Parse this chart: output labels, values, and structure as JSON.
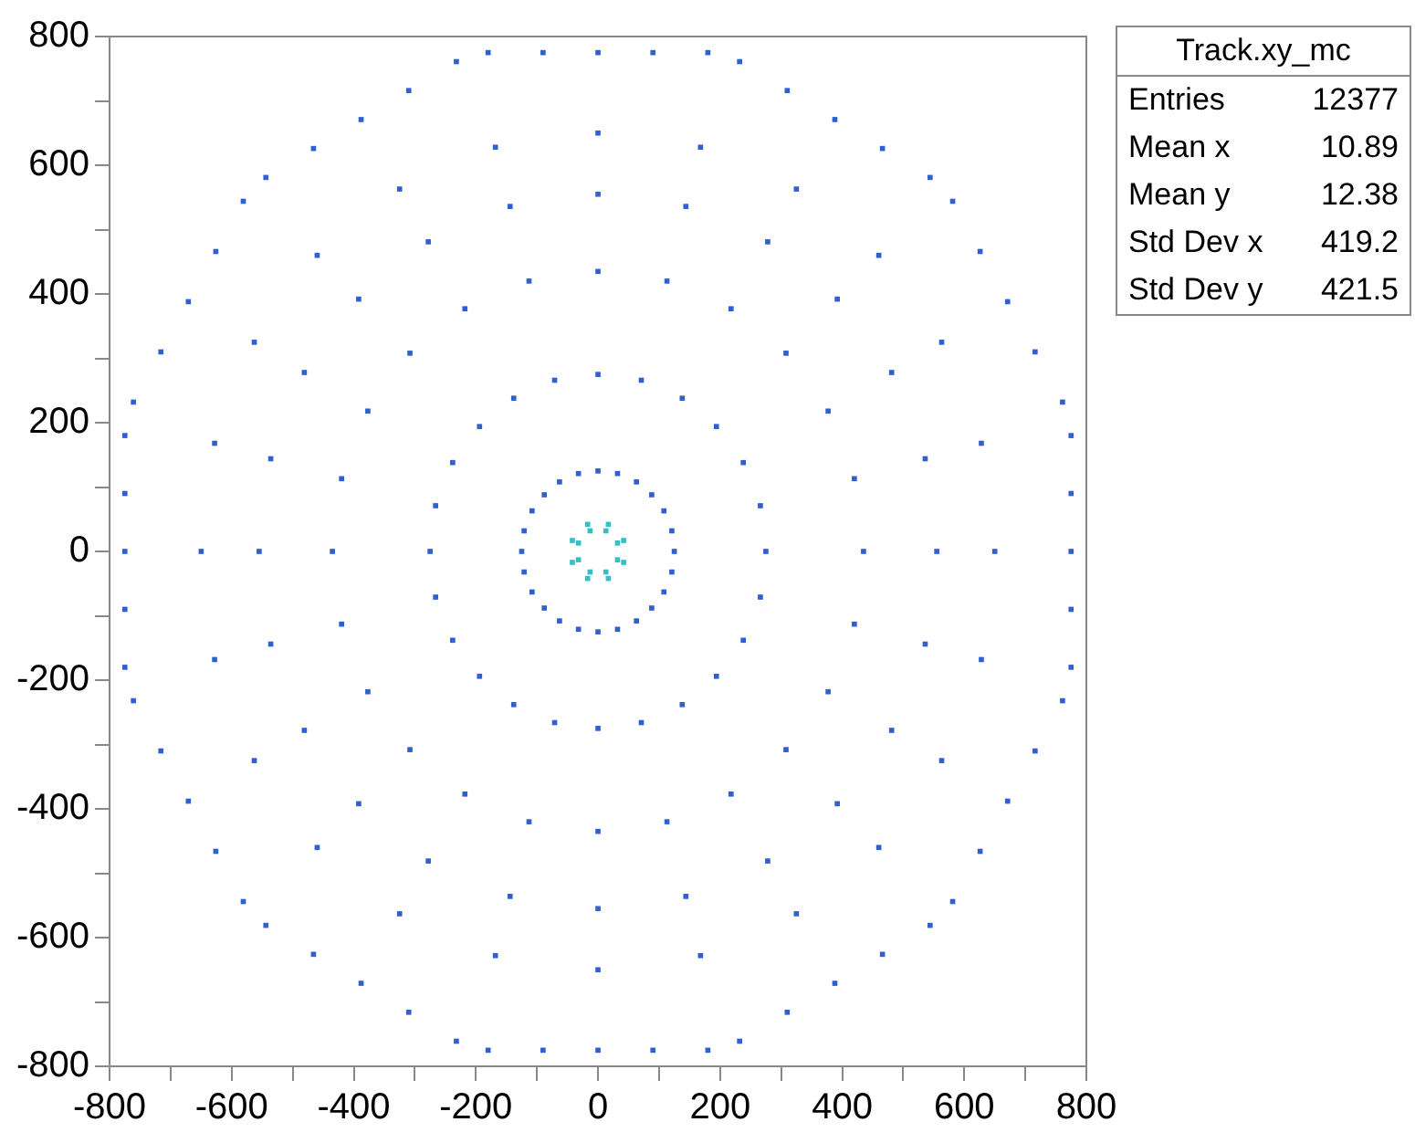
{
  "chart_data": {
    "type": "scatter",
    "annotations": [
      "Track.xy_mc",
      "Entries",
      "12377",
      "Mean x",
      "10.89",
      "Mean y",
      "12.38",
      "Std Dev x",
      "419.2",
      "Std Dev y",
      "421.5"
    ],
    "xlim": [
      -800,
      800
    ],
    "ylim": [
      -800,
      800
    ],
    "xticks": [
      -800,
      {
        "value": -700,
        "label": null
      },
      -600,
      {
        "value": -500,
        "label": null
      },
      -400,
      {
        "value": -300,
        "label": null
      },
      -200,
      {
        "value": -100,
        "label": null
      },
      0,
      {
        "value": 100,
        "label": null
      },
      200,
      {
        "value": 300,
        "label": null
      },
      400,
      {
        "value": 500,
        "label": null
      },
      600,
      {
        "value": 700,
        "label": null
      },
      800
    ],
    "yticks": [
      -800,
      {
        "value": -700,
        "label": null
      },
      -600,
      {
        "value": -500,
        "label": null
      },
      -400,
      {
        "value": -300,
        "label": null
      },
      -200,
      {
        "value": -100,
        "label": null
      },
      0,
      {
        "value": 100,
        "label": null
      },
      200,
      {
        "value": 300,
        "label": null
      },
      400,
      {
        "value": 500,
        "label": null
      },
      600,
      {
        "value": 700,
        "label": null
      },
      800
    ],
    "grid": false,
    "legend": false,
    "marker": "square",
    "series": [
      {
        "color": "#2f5fd0",
        "x": [
          125,
          121,
          108,
          88,
          63,
          32,
          0,
          -32,
          -63,
          -88,
          -108,
          -121,
          -125,
          -121,
          -108,
          -88,
          -63,
          -32,
          0,
          32,
          63,
          88,
          108,
          121
        ],
        "values": [
          0,
          32,
          63,
          88,
          108,
          121,
          125,
          121,
          108,
          88,
          63,
          32,
          0,
          -32,
          -63,
          -88,
          -108,
          -121,
          -125,
          -121,
          -108,
          -88,
          -63,
          -32
        ]
      },
      {
        "color": "#2f5fd0",
        "x": [
          275,
          266,
          238,
          194,
          138,
          71,
          0,
          -71,
          -138,
          -194,
          -238,
          -266,
          -275,
          -266,
          -238,
          -194,
          -138,
          -71,
          0,
          71,
          138,
          194,
          238,
          266
        ],
        "values": [
          0,
          71,
          138,
          194,
          238,
          266,
          275,
          266,
          238,
          194,
          138,
          71,
          0,
          -71,
          -138,
          -194,
          -238,
          -266,
          -275,
          -266,
          -238,
          -194,
          -138,
          -71
        ]
      },
      {
        "color": "#2f5fd0",
        "x": [
          435,
          420,
          377,
          308,
          218,
          113,
          0,
          -113,
          -218,
          -308,
          -377,
          -420,
          -435,
          -420,
          -377,
          -308,
          -218,
          -113,
          0,
          113,
          218,
          308,
          377,
          420
        ],
        "values": [
          0,
          113,
          218,
          308,
          377,
          420,
          435,
          420,
          377,
          308,
          218,
          113,
          0,
          -113,
          -218,
          -308,
          -377,
          -420,
          -435,
          -420,
          -377,
          -308,
          -218,
          -113
        ]
      },
      {
        "color": "#2f5fd0",
        "x": [
          555,
          536,
          481,
          392,
          278,
          144,
          0,
          -144,
          -278,
          -392,
          -481,
          -536,
          -555,
          -536,
          -481,
          -392,
          -278,
          -144,
          0,
          144,
          278,
          392,
          481,
          536
        ],
        "values": [
          0,
          144,
          278,
          392,
          481,
          536,
          555,
          536,
          481,
          392,
          278,
          144,
          0,
          -144,
          -278,
          -392,
          -481,
          -536,
          -555,
          -536,
          -481,
          -392,
          -278,
          -144
        ]
      },
      {
        "color": "#2f5fd0",
        "x": [
          650,
          628,
          563,
          460,
          325,
          168,
          0,
          -168,
          -325,
          -460,
          -563,
          -628,
          -650,
          -628,
          -563,
          -460,
          -325,
          -168,
          0,
          168,
          325,
          460,
          563,
          628
        ],
        "values": [
          0,
          168,
          325,
          460,
          563,
          628,
          650,
          628,
          563,
          460,
          325,
          168,
          0,
          -168,
          -325,
          -460,
          -563,
          -628,
          -650,
          -628,
          -563,
          -460,
          -325,
          -168
        ]
      },
      {
        "color": "#2f5fd0",
        "x": [
          775,
          775,
          775,
          775,
          775,
          761,
          716,
          671,
          626,
          581,
          544,
          466,
          388,
          310,
          232,
          180,
          90,
          0,
          -90,
          -180,
          -232,
          -310,
          -388,
          -466,
          -544,
          -581,
          -626,
          -671,
          -716,
          -761,
          -775,
          -775,
          -775,
          -775,
          -775,
          -761,
          -716,
          -671,
          -626,
          -581,
          -544,
          -466,
          -388,
          -310,
          -232,
          -180,
          -90,
          0,
          90,
          180,
          232,
          310,
          388,
          466,
          544,
          581,
          626,
          671,
          716,
          761
        ],
        "values": [
          -180,
          -90,
          0,
          90,
          180,
          232,
          310,
          388,
          466,
          544,
          581,
          626,
          671,
          716,
          761,
          775,
          775,
          775,
          775,
          775,
          761,
          716,
          671,
          626,
          581,
          544,
          466,
          388,
          310,
          232,
          180,
          90,
          0,
          -90,
          -180,
          -232,
          -310,
          -388,
          -466,
          -544,
          -581,
          -626,
          -671,
          -716,
          -761,
          -775,
          -775,
          -775,
          -775,
          -775,
          -761,
          -716,
          -671,
          -626,
          -581,
          -544,
          -466,
          -388,
          -310,
          -232
        ]
      },
      {
        "color": "#35c0c8",
        "x": [
          42,
          17,
          -17,
          -42,
          -42,
          -17,
          17,
          42,
          32,
          13,
          -13,
          -32,
          -32,
          -13,
          13,
          32
        ],
        "values": [
          17,
          42,
          42,
          17,
          -17,
          -42,
          -42,
          -17,
          13,
          32,
          32,
          13,
          -13,
          -32,
          -32,
          -13
        ]
      }
    ]
  }
}
